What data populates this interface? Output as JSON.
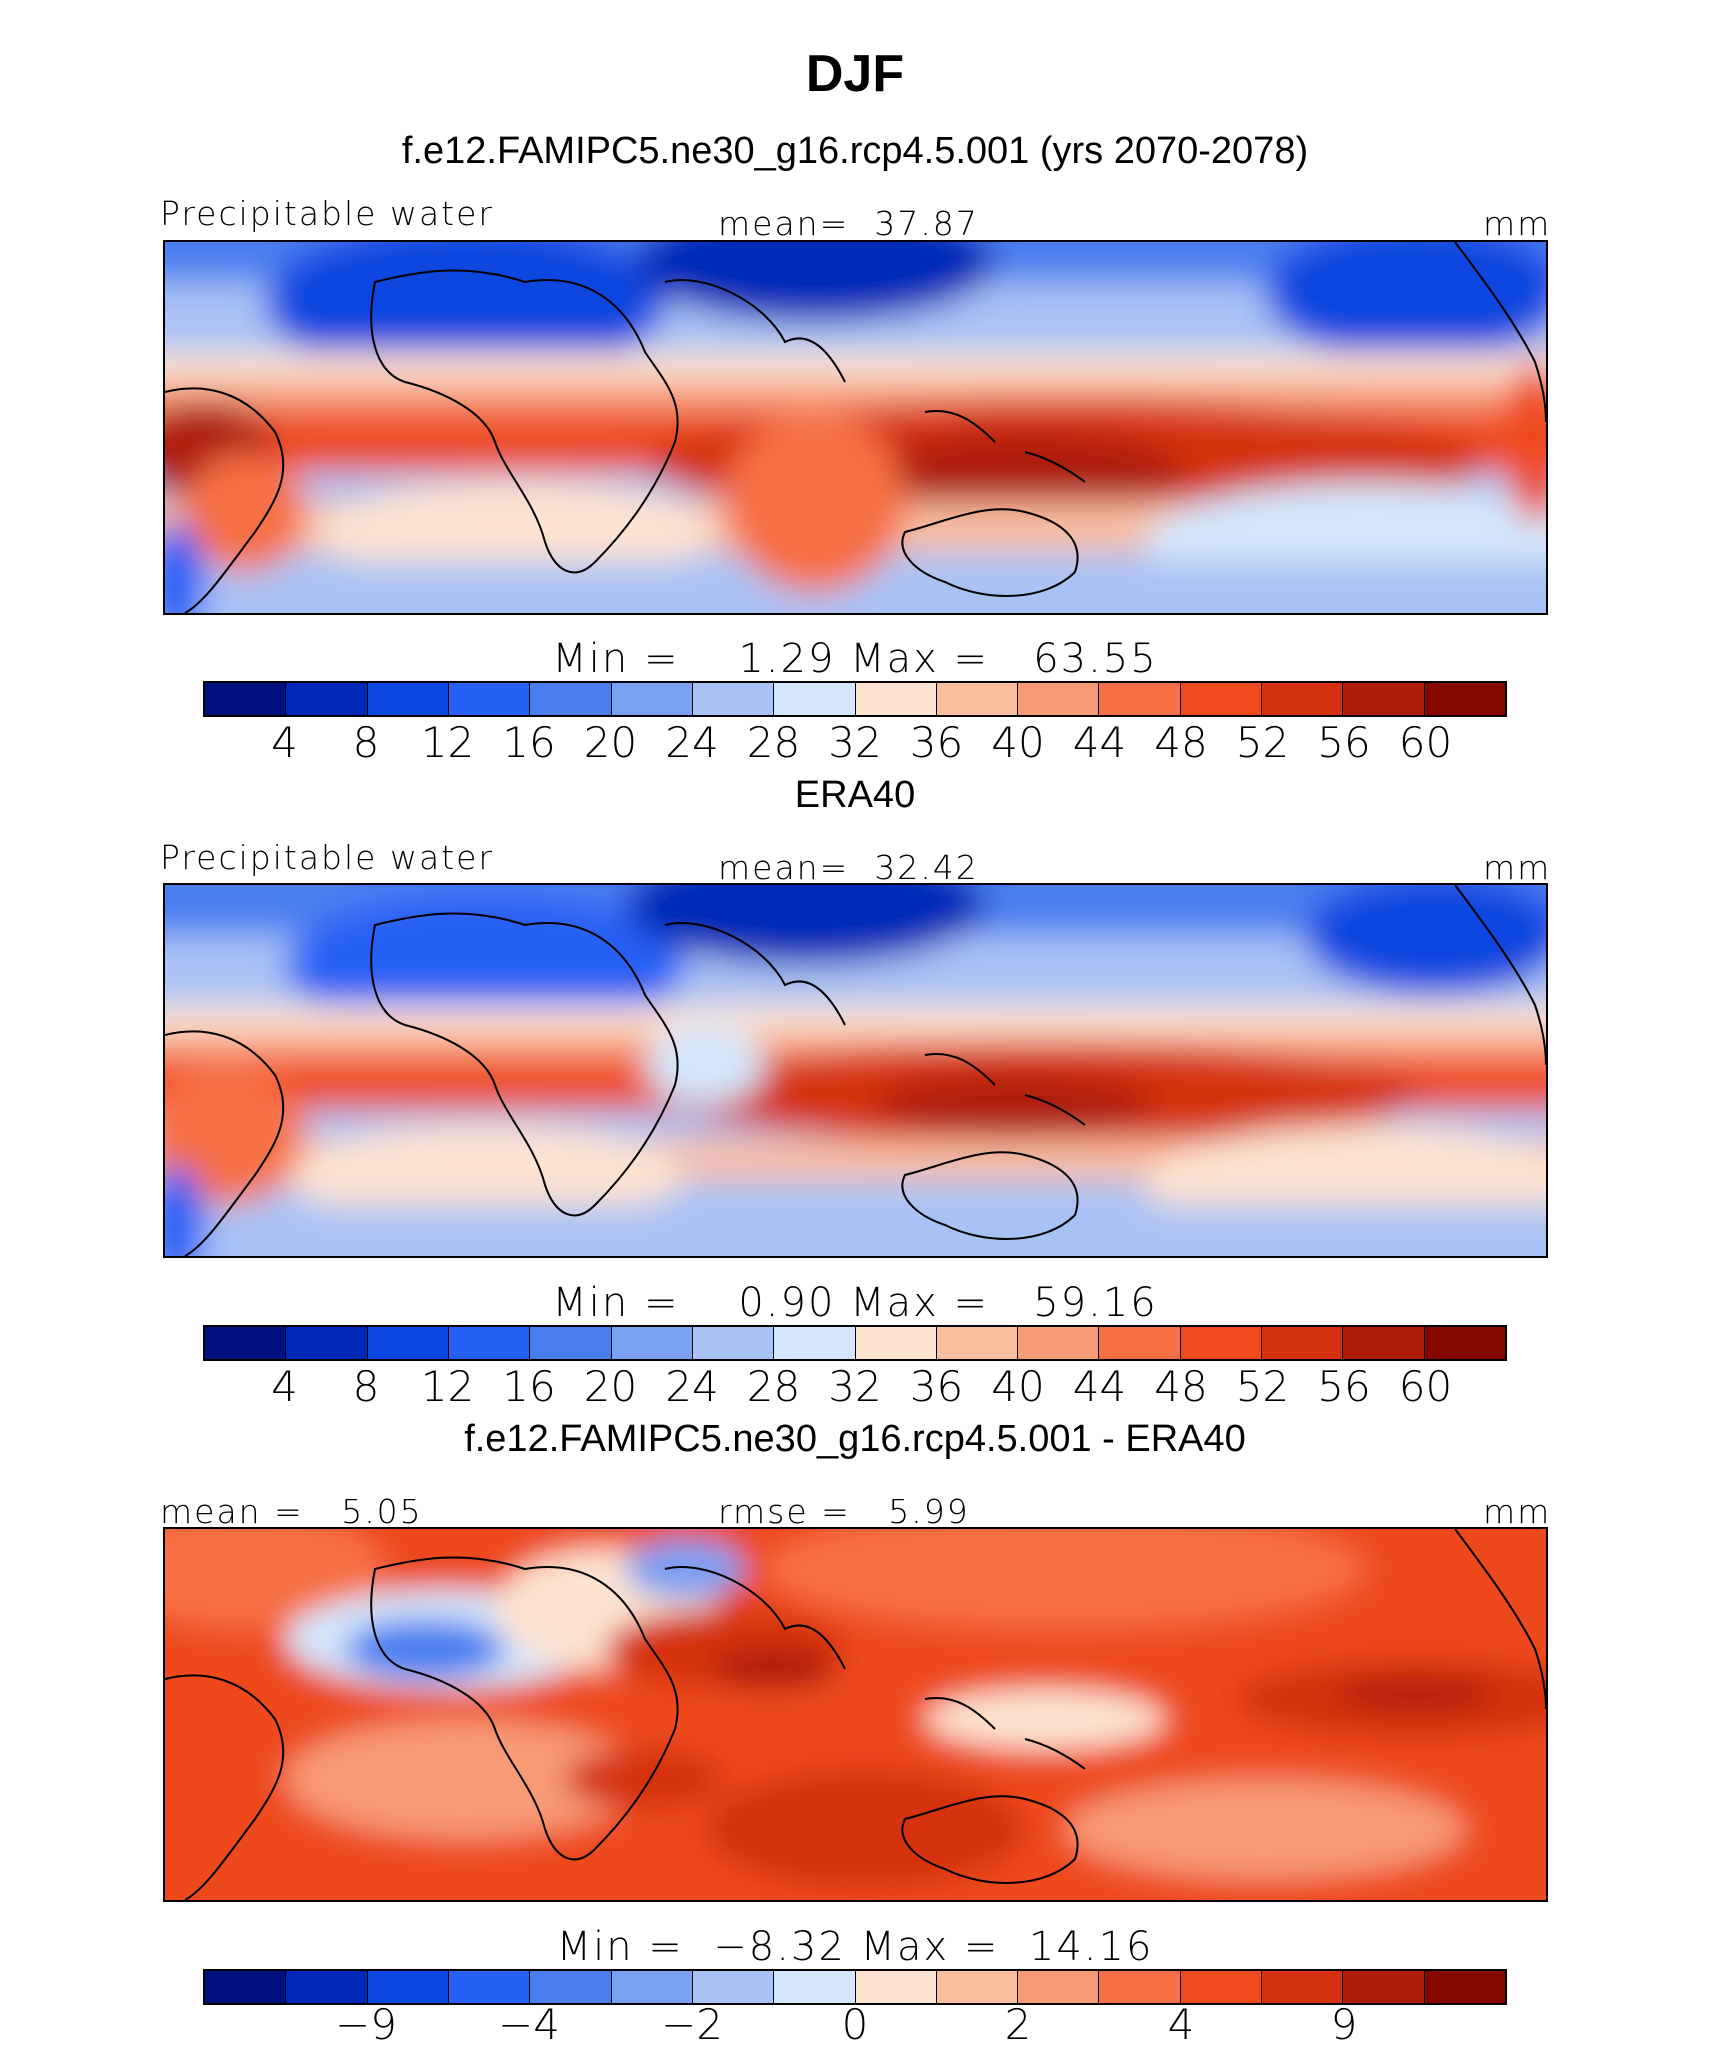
{
  "figure": {
    "title": "DJF"
  },
  "panels": [
    {
      "title": "f.e12.FAMIPC5.ne30_g16.rcp4.5.001 (yrs 2070-2078)",
      "left_label": "Precipitable water",
      "center_label": "mean=  37.87",
      "right_label": "mm",
      "minmax": "Min =    1.29 Max =   63.55",
      "colorbar": {
        "colors": [
          "#00107e",
          "#0029b8",
          "#0a47e0",
          "#2760f5",
          "#4a7ef0",
          "#7b9ff2",
          "#a9c2f5",
          "#d4e6fb",
          "#fde3d0",
          "#f9bda0",
          "#f79a76",
          "#f76f45",
          "#ee4a1c",
          "#d5300f",
          "#ad1c07",
          "#850700"
        ],
        "tick_labels": [
          "4",
          "8",
          "12",
          "16",
          "20",
          "24",
          "28",
          "32",
          "36",
          "40",
          "44",
          "48",
          "52",
          "56",
          "60"
        ]
      }
    },
    {
      "title": "ERA40",
      "left_label": "Precipitable water",
      "center_label": "mean=  32.42",
      "right_label": "mm",
      "minmax": "Min =    0.90 Max =   59.16",
      "colorbar": {
        "colors": [
          "#00107e",
          "#0029b8",
          "#0a47e0",
          "#2760f5",
          "#4a7ef0",
          "#7b9ff2",
          "#a9c2f5",
          "#d4e6fb",
          "#fde3d0",
          "#f9bda0",
          "#f79a76",
          "#f76f45",
          "#ee4a1c",
          "#d5300f",
          "#ad1c07",
          "#850700"
        ],
        "tick_labels": [
          "4",
          "8",
          "12",
          "16",
          "20",
          "24",
          "28",
          "32",
          "36",
          "40",
          "44",
          "48",
          "52",
          "56",
          "60"
        ]
      }
    },
    {
      "title": "f.e12.FAMIPC5.ne30_g16.rcp4.5.001 - ERA40",
      "left_label": "mean =   5.05",
      "center_label": "rmse =   5.99",
      "right_label": "mm",
      "minmax": "Min =  −8.32 Max =  14.16",
      "colorbar": {
        "colors": [
          "#00107e",
          "#0029b8",
          "#0a47e0",
          "#2760f5",
          "#4a7ef0",
          "#7b9ff2",
          "#a9c2f5",
          "#d4e6fb",
          "#fde3d0",
          "#f9bda0",
          "#f79a76",
          "#f76f45",
          "#ee4a1c",
          "#d5300f",
          "#ad1c07",
          "#850700"
        ],
        "tick_labels": [
          "−9",
          "−4",
          "−2",
          "0",
          "2",
          "4",
          "9"
        ]
      }
    }
  ]
}
